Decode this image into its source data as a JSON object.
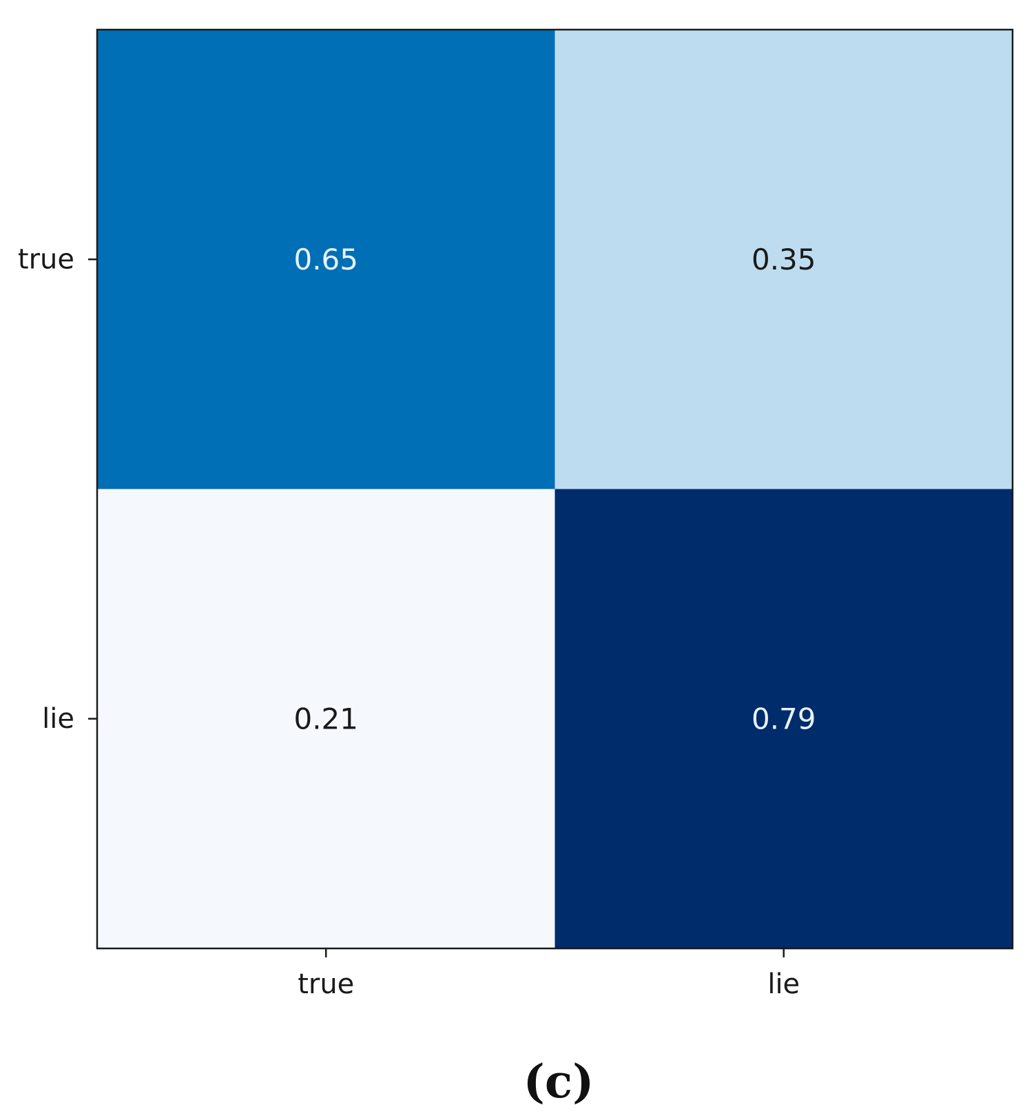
{
  "chart_data": {
    "type": "heatmap",
    "rows": [
      "true",
      "lie"
    ],
    "columns": [
      "true",
      "lie"
    ],
    "values": [
      [
        0.65,
        0.35
      ],
      [
        0.21,
        0.79
      ]
    ],
    "value_labels": [
      [
        "0.65",
        "0.35"
      ],
      [
        "0.21",
        "0.79"
      ]
    ],
    "colormap": "Blues",
    "cell_colors": [
      [
        "#006fb6",
        "#bedcef"
      ],
      [
        "#f5f9fe",
        "#002c6b"
      ]
    ],
    "text_colors": [
      [
        "#e8f2fb",
        "#1a1a1a"
      ],
      [
        "#1a1a1a",
        "#e8f2fb"
      ]
    ],
    "title": "",
    "xlabel": "",
    "ylabel": "",
    "grid": false,
    "legend": "none"
  },
  "panel_label": "(c)"
}
